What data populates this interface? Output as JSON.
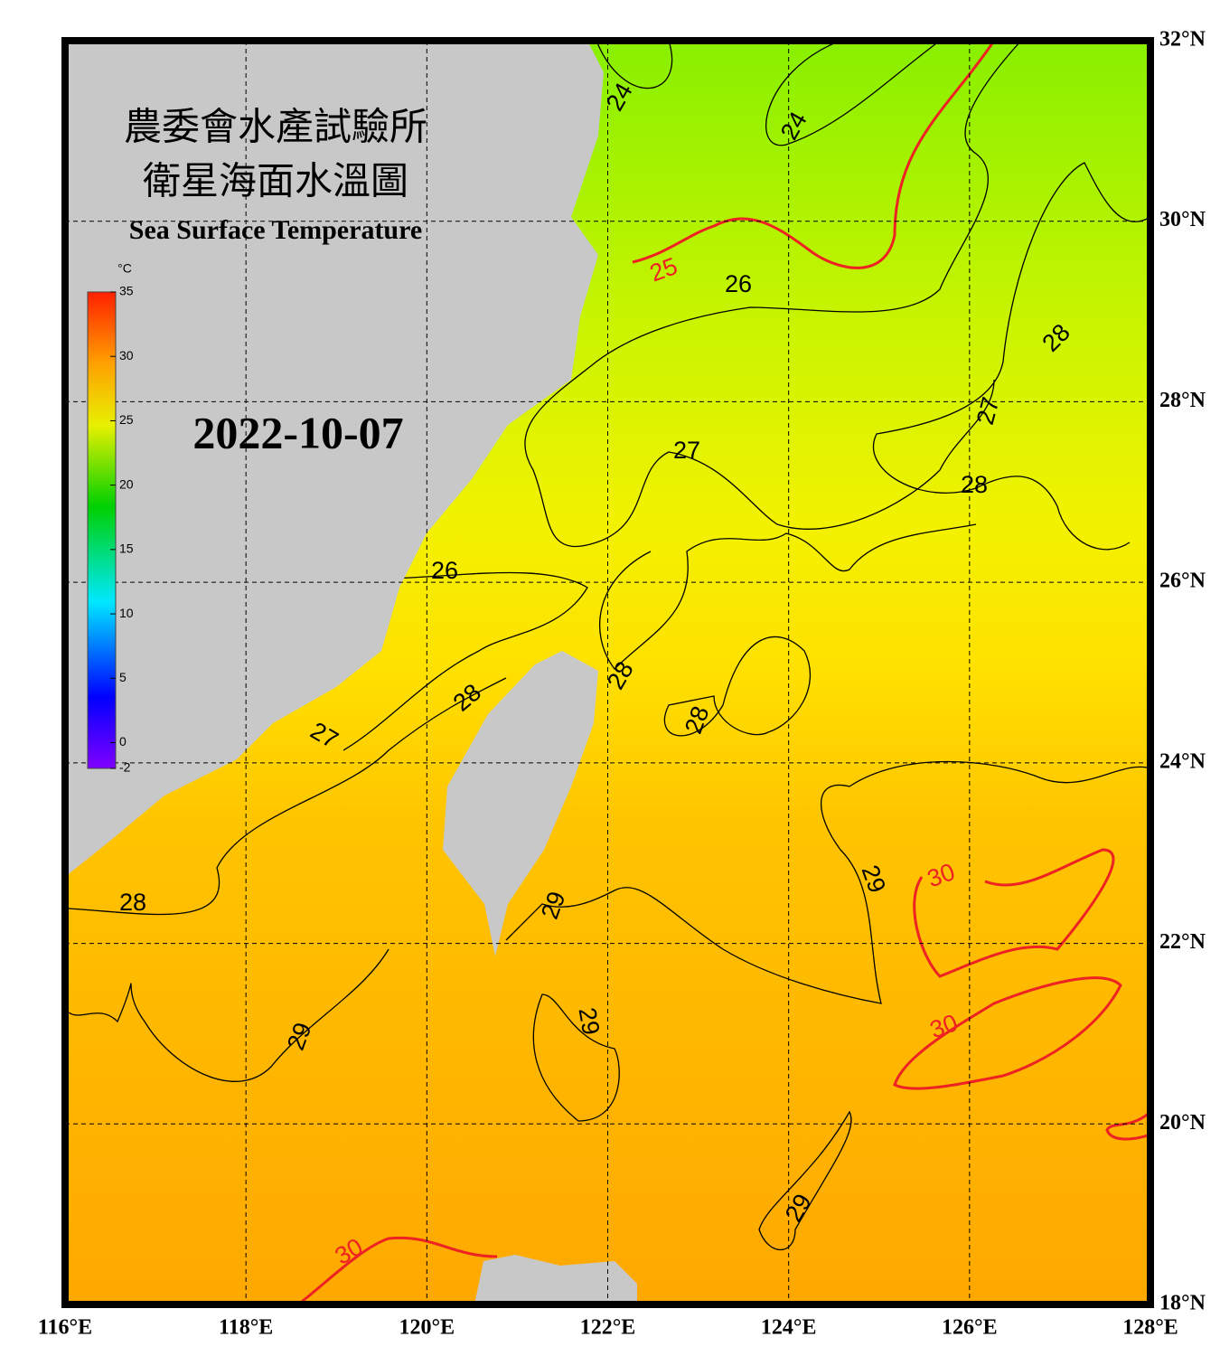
{
  "header": {
    "title_zh_1": "農委會水產試驗所",
    "title_zh_2": "衛星海面水溫圖",
    "title_en": "Sea Surface Temperature",
    "date": "2022-10-07"
  },
  "colorbar": {
    "unit": "°C",
    "ticks": [
      35,
      30,
      25,
      20,
      15,
      10,
      5,
      0,
      -2
    ],
    "range": [
      -2,
      35
    ]
  },
  "map": {
    "lonlim": [
      116,
      128
    ],
    "latlim": [
      18,
      32
    ],
    "lon_ticks": [
      {
        "value": 116,
        "label": "116°E"
      },
      {
        "value": 118,
        "label": "118°E"
      },
      {
        "value": 120,
        "label": "120°E"
      },
      {
        "value": 122,
        "label": "122°E"
      },
      {
        "value": 124,
        "label": "124°E"
      },
      {
        "value": 126,
        "label": "126°E"
      },
      {
        "value": 128,
        "label": "128°E"
      }
    ],
    "lat_ticks": [
      {
        "value": 18,
        "label": "18°N"
      },
      {
        "value": 20,
        "label": "20°N"
      },
      {
        "value": 22,
        "label": "22°N"
      },
      {
        "value": 24,
        "label": "24°N"
      },
      {
        "value": 26,
        "label": "26°N"
      },
      {
        "value": 28,
        "label": "28°N"
      },
      {
        "value": 30,
        "label": "30°N"
      },
      {
        "value": 32,
        "label": "32°N"
      }
    ],
    "contour_labels": [
      24,
      24,
      25,
      26,
      27,
      28,
      27,
      28,
      26,
      28,
      28,
      27,
      28,
      28,
      29,
      29,
      30,
      29,
      29,
      30,
      29,
      30
    ],
    "contour_color": "#000000",
    "major_contour_color": "#ee2222",
    "land_color": "#c8c8c8"
  }
}
